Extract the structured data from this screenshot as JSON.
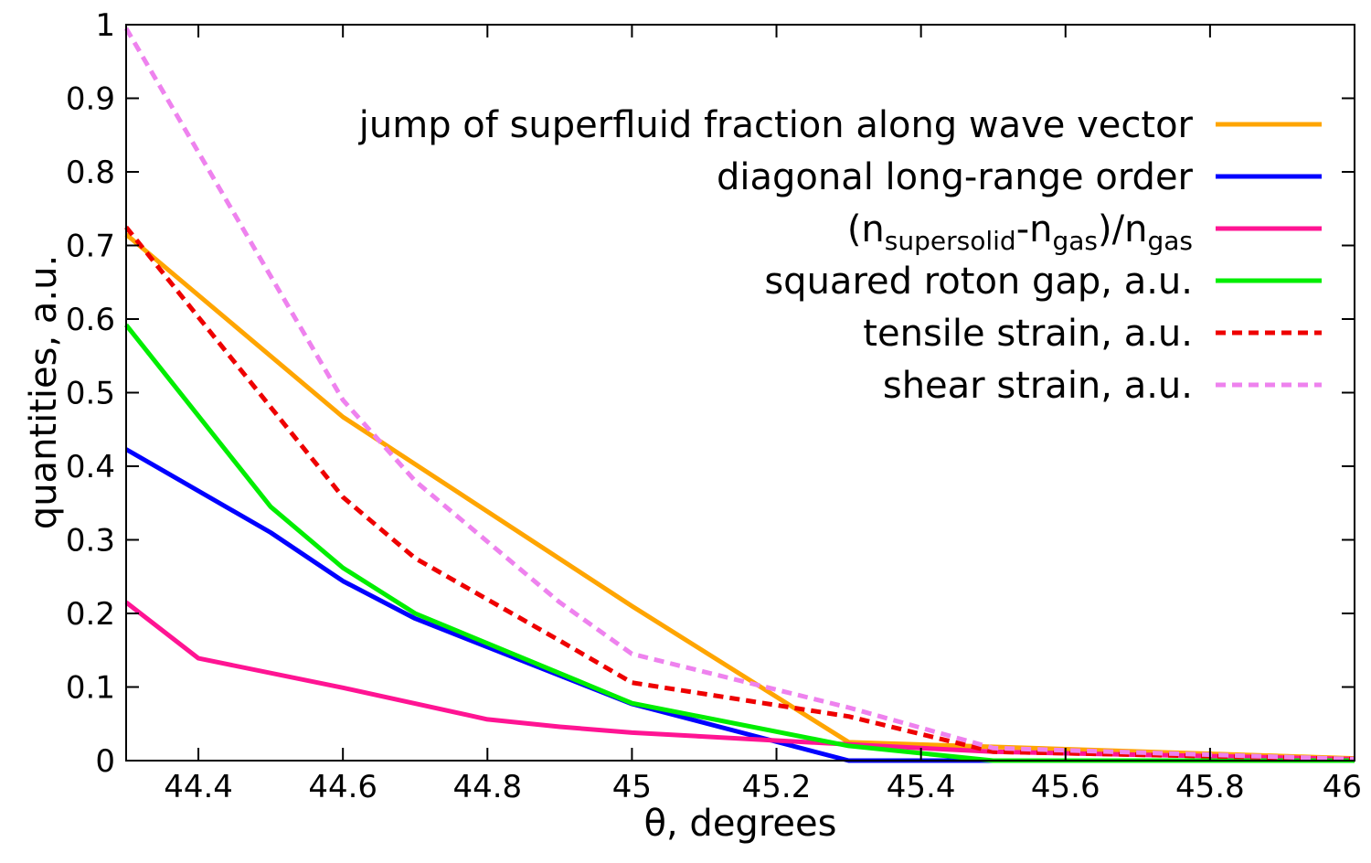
{
  "chart_data": {
    "type": "line",
    "xlabel": "θ, degrees",
    "ylabel": "quantities, a.u.",
    "xlim": [
      44.3,
      46.0
    ],
    "ylim": [
      0,
      1
    ],
    "xticks": [
      44.4,
      44.6,
      44.8,
      45,
      45.2,
      45.4,
      45.6,
      45.8,
      46
    ],
    "xtick_labels": [
      "44.4",
      "44.6",
      "44.8",
      "45",
      "45.2",
      "45.4",
      "45.6",
      "45.8",
      "46"
    ],
    "yticks": [
      0,
      0.1,
      0.2,
      0.3,
      0.4,
      0.5,
      0.6,
      0.7,
      0.8,
      0.9,
      1
    ],
    "ytick_labels": [
      "0",
      "0.1",
      "0.2",
      "0.3",
      "0.4",
      "0.5",
      "0.6",
      "0.7",
      "0.8",
      "0.9",
      "1"
    ],
    "grid": false,
    "legend_position": "top-right",
    "series": [
      {
        "name": "jump of superfluid fraction along wave vector",
        "legend": {
          "main": "jump of superfluid fraction along wave vector"
        },
        "color": "#FFA500",
        "dashed": false,
        "x": [
          44.3,
          44.6,
          45.0,
          45.3,
          46.0
        ],
        "y": [
          0.715,
          0.467,
          0.21,
          0.025,
          0.003
        ]
      },
      {
        "name": "diagonal long-range order",
        "legend": {
          "main": "diagonal long-range order"
        },
        "color": "#0000FF",
        "dashed": false,
        "x": [
          44.3,
          44.5,
          44.6,
          44.7,
          45.0,
          45.3,
          46.0
        ],
        "y": [
          0.423,
          0.31,
          0.244,
          0.193,
          0.077,
          0.0,
          0.0
        ]
      },
      {
        "name": "(n_supersolid-n_gas)/n_gas",
        "legend": {
          "open": "(n",
          "sub1": "supersolid",
          "mid": "-n",
          "sub2": "gas",
          "close": ")/n",
          "sub3": "gas"
        },
        "color": "#FF1493",
        "dashed": false,
        "x": [
          44.3,
          44.4,
          44.6,
          44.8,
          44.9,
          45.0,
          45.3,
          45.5,
          46.0
        ],
        "y": [
          0.215,
          0.139,
          0.099,
          0.056,
          0.046,
          0.038,
          0.022,
          0.012,
          0.002
        ]
      },
      {
        "name": "squared roton gap, a.u.",
        "legend": {
          "main": "squared roton gap, a.u."
        },
        "color": "#00EE00",
        "dashed": false,
        "x": [
          44.3,
          44.5,
          44.6,
          44.7,
          45.0,
          45.3,
          45.5,
          46.0
        ],
        "y": [
          0.592,
          0.345,
          0.262,
          0.2,
          0.078,
          0.02,
          0.0,
          0.0
        ]
      },
      {
        "name": "tensile strain, a.u.",
        "legend": {
          "main": "tensile strain, a.u."
        },
        "color": "#EE0000",
        "dashed": true,
        "x": [
          44.3,
          44.6,
          44.7,
          44.9,
          45.0,
          45.3,
          45.5,
          46.0
        ],
        "y": [
          0.725,
          0.358,
          0.275,
          0.163,
          0.106,
          0.06,
          0.012,
          0.002
        ]
      },
      {
        "name": "shear strain, a.u.",
        "legend": {
          "main": "shear strain, a.u."
        },
        "color": "#EE82EE",
        "dashed": true,
        "x": [
          44.3,
          44.6,
          44.7,
          44.9,
          45.0,
          45.3,
          45.5,
          46.0
        ],
        "y": [
          0.995,
          0.49,
          0.38,
          0.215,
          0.145,
          0.072,
          0.017,
          0.002
        ]
      }
    ]
  }
}
